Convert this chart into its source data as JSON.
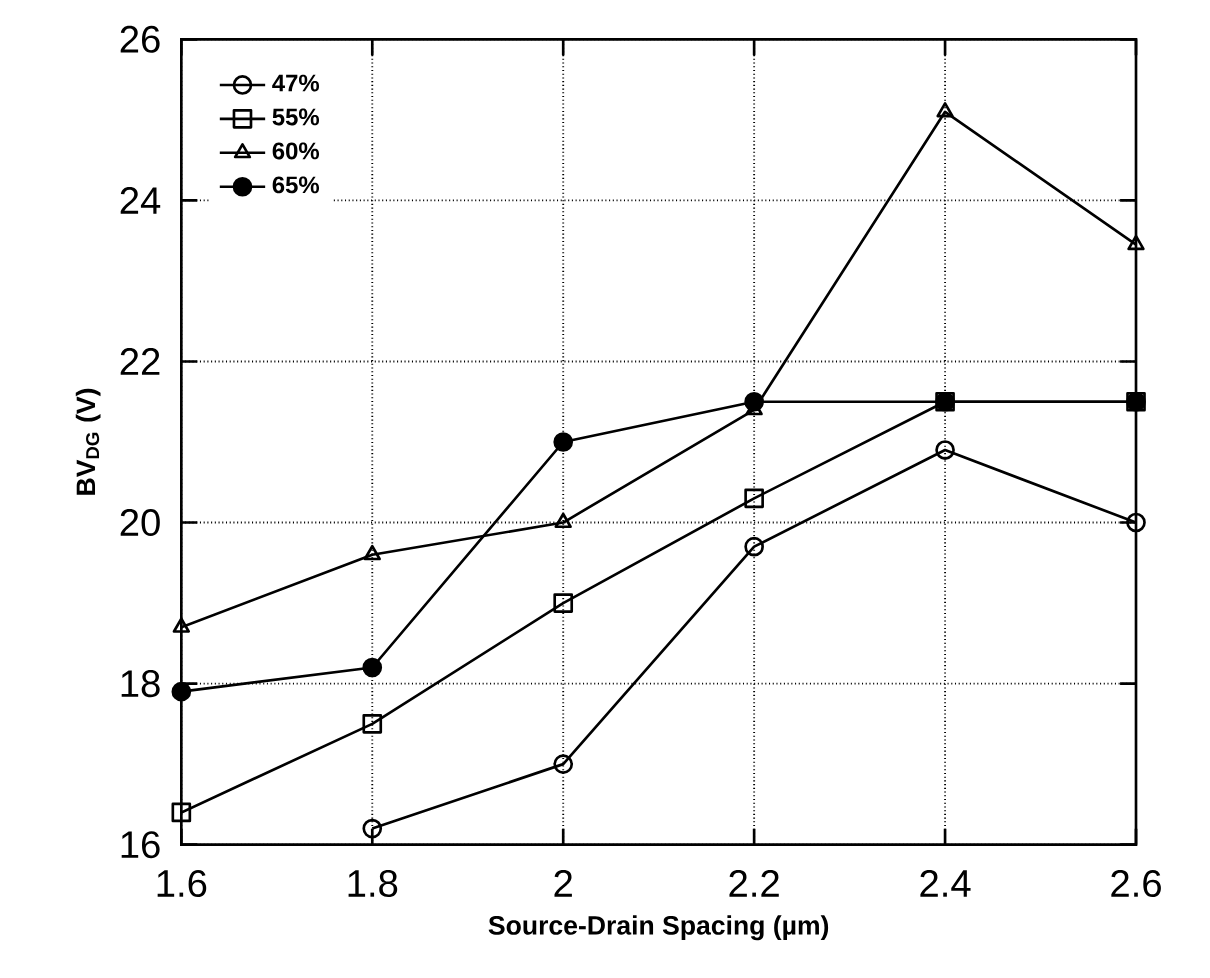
{
  "chart_data": {
    "type": "line",
    "xlabel": "Source-Drain Spacing (µm)",
    "ylabel": "BV$_{DG}$ (V)",
    "x": [
      1.6,
      1.8,
      2.0,
      2.2,
      2.4,
      2.6
    ],
    "series": [
      {
        "name": "47%",
        "color": "#000000",
        "marker": "circle",
        "values": [
          null,
          16.2,
          17.0,
          19.7,
          20.9,
          20.0
        ]
      },
      {
        "name": "55%",
        "color": "#000000",
        "marker": "square",
        "values": [
          16.4,
          17.5,
          19.0,
          20.3,
          21.5,
          21.5
        ]
      },
      {
        "name": "60%",
        "color": "#000000",
        "marker": "triangle",
        "values": [
          18.7,
          19.6,
          20.0,
          21.4,
          25.1,
          23.45
        ]
      },
      {
        "name": "65%",
        "color": "#000000",
        "marker": "filled circle",
        "values": [
          17.9,
          18.2,
          21.0,
          21.5,
          21.5,
          21.5
        ]
      }
    ],
    "xlim": [
      1.6,
      2.6
    ],
    "ylim": [
      16,
      26
    ],
    "xticks": [
      1.6,
      1.8,
      {
        "value": 2.0,
        "label": "2"
      },
      2.2,
      2.4,
      2.6
    ],
    "yticks": [
      16,
      18,
      20,
      22,
      24,
      26
    ],
    "grid": true,
    "legend": "top left",
    "line_style": "solid"
  }
}
